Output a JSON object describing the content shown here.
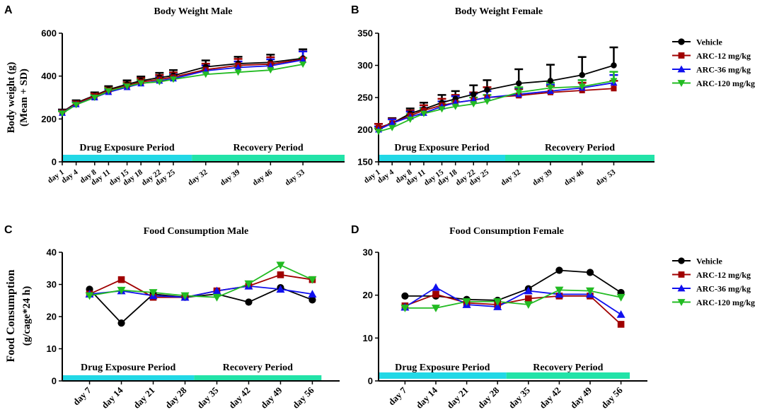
{
  "series_names": [
    "Vehicle",
    "ARC-12 mg/kg",
    "ARC-36 mg/kg",
    "ARC-120 mg/kg"
  ],
  "series_colors": [
    "#000000",
    "#a00000",
    "#1010ee",
    "#22bb22"
  ],
  "series_markers": [
    "circle",
    "square",
    "triangle-up",
    "triangle-down"
  ],
  "period_colors": {
    "exposure": "#22d8e6",
    "recovery": "#22e3a8"
  },
  "chart_data": [
    {
      "panel": "A",
      "type": "line",
      "title": "Body Weight Male",
      "ylabel": "Body weight (g)",
      "ylabel2": "(Mean + SD)",
      "ylim": [
        0,
        600
      ],
      "yticks": [
        0,
        200,
        400,
        600
      ],
      "x": [
        1,
        4,
        8,
        11,
        15,
        18,
        22,
        25,
        32,
        39,
        46,
        53
      ],
      "xlabels": [
        "day 1",
        "day 4",
        "day 8",
        "day 11",
        "day 15",
        "day 18",
        "day 22",
        "day 25",
        "day 32",
        "day 39",
        "day 46",
        "day 53"
      ],
      "xrange": [
        1,
        62
      ],
      "periods": [
        {
          "label": "Drug Exposure Period",
          "from": 1,
          "to": 29
        },
        {
          "label": "Recovery Period",
          "from": 29,
          "to": 62
        }
      ],
      "series": [
        {
          "name": "Vehicle",
          "values": [
            232,
            275,
            310,
            337,
            362,
            378,
            393,
            402,
            443,
            458,
            464,
            483
          ]
        },
        {
          "name": "ARC-12 mg/kg",
          "values": [
            230,
            272,
            307,
            333,
            355,
            372,
            385,
            395,
            430,
            450,
            456,
            478
          ]
        },
        {
          "name": "ARC-36 mg/kg",
          "values": [
            228,
            268,
            300,
            325,
            348,
            365,
            378,
            388,
            425,
            440,
            448,
            475
          ]
        },
        {
          "name": "ARC-120 mg/kg",
          "values": [
            226,
            266,
            300,
            330,
            352,
            367,
            373,
            385,
            408,
            418,
            428,
            455
          ]
        }
      ],
      "errors_sd": [
        [
          12,
          12,
          14,
          16,
          18,
          20,
          22,
          26,
          30,
          32,
          36,
          42
        ],
        [
          10,
          10,
          12,
          14,
          16,
          18,
          20,
          22,
          28,
          30,
          32,
          38
        ],
        [
          10,
          10,
          12,
          14,
          16,
          16,
          18,
          20,
          24,
          28,
          30,
          40
        ],
        [
          10,
          10,
          12,
          14,
          14,
          16,
          18,
          18,
          22,
          24,
          26,
          30
        ]
      ]
    },
    {
      "panel": "B",
      "type": "line",
      "title": "Body Weight Female",
      "ylim": [
        150,
        350
      ],
      "yticks": [
        150,
        200,
        250,
        300,
        350
      ],
      "x": [
        1,
        4,
        8,
        11,
        15,
        18,
        22,
        25,
        32,
        39,
        46,
        53
      ],
      "xlabels": [
        "day 1",
        "day 4",
        "day 8",
        "day 11",
        "day 15",
        "day 18",
        "day 22",
        "day 25",
        "day 32",
        "day 39",
        "day 46",
        "day 53"
      ],
      "xrange": [
        1,
        62
      ],
      "periods": [
        {
          "label": "Drug Exposure Period",
          "from": 1,
          "to": 29
        },
        {
          "label": "Recovery Period",
          "from": 29,
          "to": 62
        }
      ],
      "series": [
        {
          "name": "Vehicle",
          "values": [
            203,
            210,
            225,
            232,
            242,
            248,
            255,
            262,
            272,
            276,
            285,
            300
          ]
        },
        {
          "name": "ARC-12 mg/kg",
          "values": [
            203,
            210,
            222,
            230,
            238,
            242,
            246,
            250,
            253,
            258,
            261,
            264
          ]
        },
        {
          "name": "ARC-36 mg/kg",
          "values": [
            200,
            210,
            220,
            226,
            236,
            242,
            246,
            250,
            255,
            260,
            265,
            273
          ]
        },
        {
          "name": "ARC-120 mg/kg",
          "values": [
            197,
            203,
            216,
            225,
            232,
            236,
            240,
            244,
            258,
            265,
            267,
            276
          ]
        }
      ],
      "errors_sd": [
        [
          6,
          8,
          8,
          10,
          12,
          12,
          14,
          15,
          22,
          25,
          28,
          28
        ],
        [
          6,
          7,
          8,
          8,
          10,
          12,
          12,
          16,
          10,
          10,
          12,
          12
        ],
        [
          5,
          6,
          8,
          8,
          8,
          10,
          10,
          10,
          10,
          10,
          12,
          12
        ],
        [
          5,
          6,
          8,
          8,
          8,
          8,
          10,
          10,
          8,
          8,
          10,
          14
        ]
      ]
    },
    {
      "panel": "C",
      "type": "line",
      "title": "Food Consumption Male",
      "ylabel": "Food Consumption",
      "ylabel2": "(g/cage*24 h)",
      "ylim": [
        0,
        40
      ],
      "yticks": [
        0,
        10,
        20,
        30,
        40
      ],
      "x": [
        7,
        14,
        21,
        28,
        35,
        42,
        49,
        56
      ],
      "xlabels": [
        "day 7",
        "day 14",
        "day 21",
        "day 28",
        "day 35",
        "day 42",
        "day 49",
        "day 56"
      ],
      "xrange": [
        1,
        62
      ],
      "periods": [
        {
          "label": "Drug Exposure Period",
          "from": 1,
          "to": 30
        },
        {
          "label": "Recovery Period",
          "from": 30,
          "to": 58
        }
      ],
      "series": [
        {
          "name": "Vehicle",
          "values": [
            28.5,
            18.0,
            27.0,
            26.0,
            27.0,
            24.5,
            29.0,
            25.2
          ]
        },
        {
          "name": "ARC-12 mg/kg",
          "values": [
            27.0,
            31.5,
            26.0,
            26.0,
            28.0,
            29.5,
            33.0,
            31.5
          ]
        },
        {
          "name": "ARC-36 mg/kg",
          "values": [
            27.0,
            28.0,
            26.5,
            26.0,
            28.0,
            29.5,
            28.5,
            27.0
          ]
        },
        {
          "name": "ARC-120 mg/kg",
          "values": [
            26.5,
            28.2,
            27.5,
            26.5,
            26.0,
            30.2,
            36.0,
            31.5
          ]
        }
      ]
    },
    {
      "panel": "D",
      "type": "line",
      "title": "Food Consumption Female",
      "ylim": [
        0,
        30
      ],
      "yticks": [
        0,
        10,
        20,
        30
      ],
      "x": [
        7,
        14,
        21,
        28,
        35,
        42,
        49,
        56
      ],
      "xlabels": [
        "day 7",
        "day 14",
        "day 21",
        "day 28",
        "day 35",
        "day 42",
        "day 49",
        "day 56"
      ],
      "xrange": [
        1,
        62
      ],
      "periods": [
        {
          "label": "Drug Exposure Period",
          "from": 1,
          "to": 30
        },
        {
          "label": "Recovery Period",
          "from": 30,
          "to": 58
        }
      ],
      "series": [
        {
          "name": "Vehicle",
          "values": [
            19.8,
            19.8,
            19.0,
            18.8,
            21.5,
            25.8,
            25.3,
            20.6
          ]
        },
        {
          "name": "ARC-12 mg/kg",
          "values": [
            17.5,
            20.2,
            18.2,
            17.8,
            19.2,
            19.8,
            19.8,
            13.2
          ]
        },
        {
          "name": "ARC-36 mg/kg",
          "values": [
            17.2,
            21.8,
            17.8,
            17.3,
            21.0,
            20.2,
            20.2,
            15.5
          ]
        },
        {
          "name": "ARC-120 mg/kg",
          "values": [
            17.0,
            17.0,
            18.5,
            18.5,
            17.8,
            21.2,
            21.0,
            19.5
          ]
        }
      ]
    }
  ]
}
